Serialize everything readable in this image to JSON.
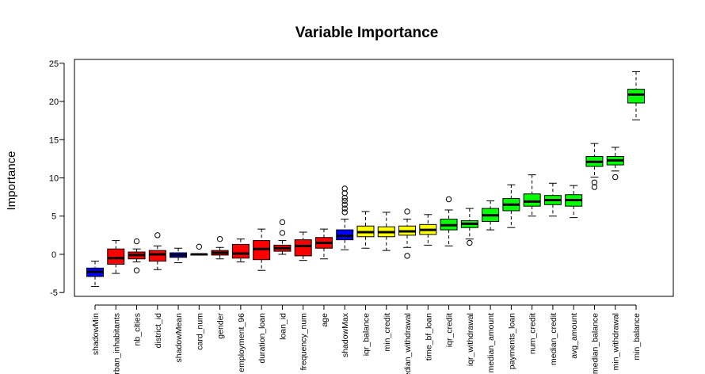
{
  "chart_data": {
    "type": "boxplot",
    "title": "Variable Importance",
    "xlabel": "",
    "ylabel": "Importance",
    "ylim": [
      -5.5,
      25.5
    ],
    "yticks": [
      "-5",
      "0",
      "5",
      "10",
      "15",
      "20",
      "25"
    ],
    "grid": false,
    "colors": {
      "shadow": "#0000ff",
      "rejected": "#ff0000",
      "tentative": "#ffff00",
      "confirmed": "#00ff00"
    },
    "boxes": [
      {
        "name": "shadowMin",
        "group": "shadow",
        "min": -4.2,
        "q1": -2.9,
        "median": -2.3,
        "q3": -1.8,
        "max": -0.9,
        "outliers": []
      },
      {
        "name": "urban_inhabitants",
        "group": "rejected",
        "min": -2.5,
        "q1": -1.3,
        "median": -0.5,
        "q3": 0.7,
        "max": 1.8,
        "outliers": []
      },
      {
        "name": "nb_cities",
        "group": "rejected",
        "min": -1.0,
        "q1": -0.6,
        "median": -0.1,
        "q3": 0.3,
        "max": 0.7,
        "outliers": [
          1.7,
          -2.1
        ]
      },
      {
        "name": "district_id",
        "group": "rejected",
        "min": -2.0,
        "q1": -0.9,
        "median": 0.0,
        "q3": 0.5,
        "max": 1.1,
        "outliers": [
          2.5
        ]
      },
      {
        "name": "shadowMean",
        "group": "shadow",
        "min": -1.1,
        "q1": -0.4,
        "median": -0.1,
        "q3": 0.2,
        "max": 0.8,
        "outliers": []
      },
      {
        "name": "card_num",
        "group": "rejected",
        "min": -0.1,
        "q1": -0.1,
        "median": 0.0,
        "q3": 0.0,
        "max": 0.1,
        "outliers": [
          1.0
        ]
      },
      {
        "name": "gender",
        "group": "rejected",
        "min": -0.6,
        "q1": -0.1,
        "median": 0.2,
        "q3": 0.5,
        "max": 0.9,
        "outliers": [
          2.0
        ]
      },
      {
        "name": "employment_96",
        "group": "rejected",
        "min": -1.0,
        "q1": -0.5,
        "median": 0.1,
        "q3": 1.3,
        "max": 2.0,
        "outliers": []
      },
      {
        "name": "duration_loan",
        "group": "rejected",
        "min": -2.1,
        "q1": -0.7,
        "median": 0.7,
        "q3": 1.8,
        "max": 3.3,
        "outliers": []
      },
      {
        "name": "loan_id",
        "group": "rejected",
        "min": 0.0,
        "q1": 0.4,
        "median": 0.8,
        "q3": 1.2,
        "max": 1.8,
        "outliers": [
          2.8,
          4.2
        ]
      },
      {
        "name": "frequency_num",
        "group": "rejected",
        "min": -0.8,
        "q1": -0.2,
        "median": 1.1,
        "q3": 1.9,
        "max": 2.9,
        "outliers": []
      },
      {
        "name": "age",
        "group": "rejected",
        "min": -0.6,
        "q1": 0.8,
        "median": 1.5,
        "q3": 2.2,
        "max": 3.3,
        "outliers": []
      },
      {
        "name": "shadowMax",
        "group": "shadow",
        "min": 0.6,
        "q1": 1.9,
        "median": 2.4,
        "q3": 3.2,
        "max": 4.6,
        "outliers": [
          5.5,
          6.0,
          6.5,
          7.0,
          7.4,
          8.0,
          8.6
        ]
      },
      {
        "name": "iqr_balance",
        "group": "tentative",
        "min": 0.8,
        "q1": 2.3,
        "median": 2.9,
        "q3": 3.7,
        "max": 5.6,
        "outliers": []
      },
      {
        "name": "min_credit",
        "group": "tentative",
        "min": 0.5,
        "q1": 2.3,
        "median": 2.9,
        "q3": 3.6,
        "max": 5.5,
        "outliers": []
      },
      {
        "name": "median_withdrawal",
        "group": "tentative",
        "min": 0.9,
        "q1": 2.5,
        "median": 3.0,
        "q3": 3.7,
        "max": 4.6,
        "outliers": [
          5.6,
          -0.2
        ]
      },
      {
        "name": "time_bf_loan",
        "group": "tentative",
        "min": 1.2,
        "q1": 2.6,
        "median": 3.2,
        "q3": 3.9,
        "max": 5.2,
        "outliers": []
      },
      {
        "name": "iqr_credit",
        "group": "confirmed",
        "min": 1.1,
        "q1": 3.2,
        "median": 3.8,
        "q3": 4.6,
        "max": 5.8,
        "outliers": [
          7.2
        ]
      },
      {
        "name": "iqr_withdrawal",
        "group": "confirmed",
        "min": 2.0,
        "q1": 3.5,
        "median": 4.0,
        "q3": 4.4,
        "max": 6.0,
        "outliers": [
          1.5
        ]
      },
      {
        "name": "median_amount",
        "group": "confirmed",
        "min": 3.2,
        "q1": 4.3,
        "median": 5.1,
        "q3": 6.0,
        "max": 7.0,
        "outliers": []
      },
      {
        "name": "payments_loan",
        "group": "confirmed",
        "min": 3.5,
        "q1": 5.7,
        "median": 6.5,
        "q3": 7.3,
        "max": 9.1,
        "outliers": []
      },
      {
        "name": "num_credit",
        "group": "confirmed",
        "min": 5.0,
        "q1": 6.3,
        "median": 6.9,
        "q3": 7.9,
        "max": 10.4,
        "outliers": []
      },
      {
        "name": "median_credit",
        "group": "confirmed",
        "min": 5.0,
        "q1": 6.5,
        "median": 7.1,
        "q3": 7.7,
        "max": 9.3,
        "outliers": []
      },
      {
        "name": "avg_amount",
        "group": "confirmed",
        "min": 4.8,
        "q1": 6.3,
        "median": 7.1,
        "q3": 7.8,
        "max": 9.0,
        "outliers": []
      },
      {
        "name": "median_balance",
        "group": "confirmed",
        "min": 10.1,
        "q1": 11.5,
        "median": 12.1,
        "q3": 12.8,
        "max": 14.5,
        "outliers": [
          9.4,
          8.8
        ]
      },
      {
        "name": "min_withdrawal",
        "group": "confirmed",
        "min": 10.9,
        "q1": 11.7,
        "median": 12.3,
        "q3": 12.8,
        "max": 14.0,
        "outliers": [
          10.1
        ]
      },
      {
        "name": "min_balance",
        "group": "confirmed",
        "min": 17.6,
        "q1": 19.8,
        "median": 20.9,
        "q3": 21.6,
        "max": 23.9,
        "outliers": []
      }
    ]
  }
}
